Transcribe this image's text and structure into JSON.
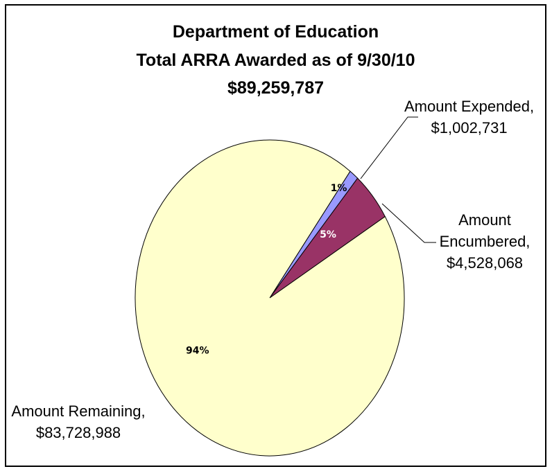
{
  "chart_data": {
    "type": "pie",
    "title": [
      "Department of Education",
      "Total ARRA Awarded as of 9/30/10",
      "$89,259,787"
    ],
    "slices": [
      {
        "label": "Amount Expended,",
        "value_label": "$1,002,731",
        "value": 1002731,
        "percent_label": "1%",
        "color": "#9999ff",
        "percent_color": "#000000"
      },
      {
        "label": "Amount Encumbered,",
        "value_label": "$4,528,068",
        "value": 4528068,
        "percent_label": "5%",
        "color": "#993366",
        "percent_color": "#ffffff"
      },
      {
        "label": "Amount Remaining,",
        "value_label": "$83,728,988",
        "value": 83728988,
        "percent_label": "94%",
        "color": "#ffffcc",
        "percent_color": "#000000"
      }
    ]
  },
  "labels": {
    "expended": {
      "line1": "Amount Expended,",
      "line2": "$1,002,731"
    },
    "encumbered": {
      "line1": "Amount",
      "line2": "Encumbered,",
      "line3": "$4,528,068"
    },
    "remaining": {
      "line1": "Amount Remaining,",
      "line2": "$83,728,988"
    }
  }
}
